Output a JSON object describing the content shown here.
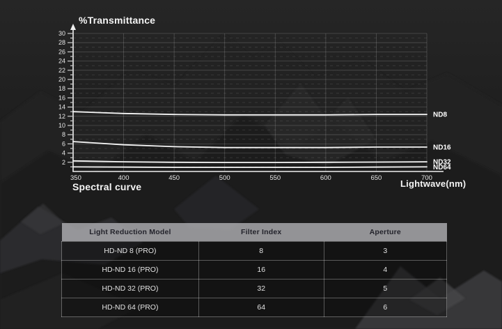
{
  "colors": {
    "background": "#181818",
    "curve": "#f5f5f5",
    "axis": "#f0f0f0",
    "grid_solid": "rgba(255,255,255,0.20)",
    "grid_dashed": "rgba(255,255,255,0.13)",
    "tick_label": "#e6e6e6",
    "table_header_bg": "#7c7c7e",
    "table_header_text": "#23232b",
    "table_row_text": "#e2e2e2"
  },
  "chart": {
    "title": "%Transmittance",
    "caption": "Spectral curve",
    "x_axis_title": "Lightwave(nm)"
  },
  "chart_data": {
    "type": "line",
    "title": "%Transmittance",
    "xlabel": "Lightwave(nm)",
    "ylabel": "%Transmittance",
    "caption": "Spectral curve",
    "x": [
      350,
      400,
      450,
      500,
      550,
      600,
      650,
      700
    ],
    "x_ticks": [
      350,
      400,
      450,
      500,
      550,
      600,
      650,
      700
    ],
    "xlim": [
      350,
      700
    ],
    "ylim": [
      0,
      30
    ],
    "y_tick_step": 2,
    "grid": "horizontal lines every 1% (solid at even, dashed at odd); vertical line at every 50 nm",
    "legend_position": "labels at right end of each line",
    "line_color": "#f5f5f5",
    "series": [
      {
        "name": "ND8",
        "values": [
          13.0,
          12.6,
          12.4,
          12.3,
          12.3,
          12.3,
          12.4,
          12.4
        ]
      },
      {
        "name": "ND16",
        "values": [
          6.5,
          5.8,
          5.4,
          5.2,
          5.2,
          5.2,
          5.3,
          5.3
        ]
      },
      {
        "name": "ND32",
        "values": [
          2.3,
          2.1,
          2.0,
          1.95,
          1.95,
          2.0,
          2.05,
          2.1
        ]
      },
      {
        "name": "ND64",
        "values": [
          1.0,
          0.95,
          0.9,
          0.9,
          0.9,
          0.9,
          0.95,
          1.0
        ]
      }
    ]
  },
  "table": {
    "headers": [
      "Light Reduction Model",
      "Filter Index",
      "Aperture"
    ],
    "rows": [
      [
        "HD-ND 8 (PRO)",
        "8",
        "3"
      ],
      [
        "HD-ND 16 (PRO)",
        "16",
        "4"
      ],
      [
        "HD-ND 32 (PRO)",
        "32",
        "5"
      ],
      [
        "HD-ND 64 (PRO)",
        "64",
        "6"
      ]
    ]
  }
}
